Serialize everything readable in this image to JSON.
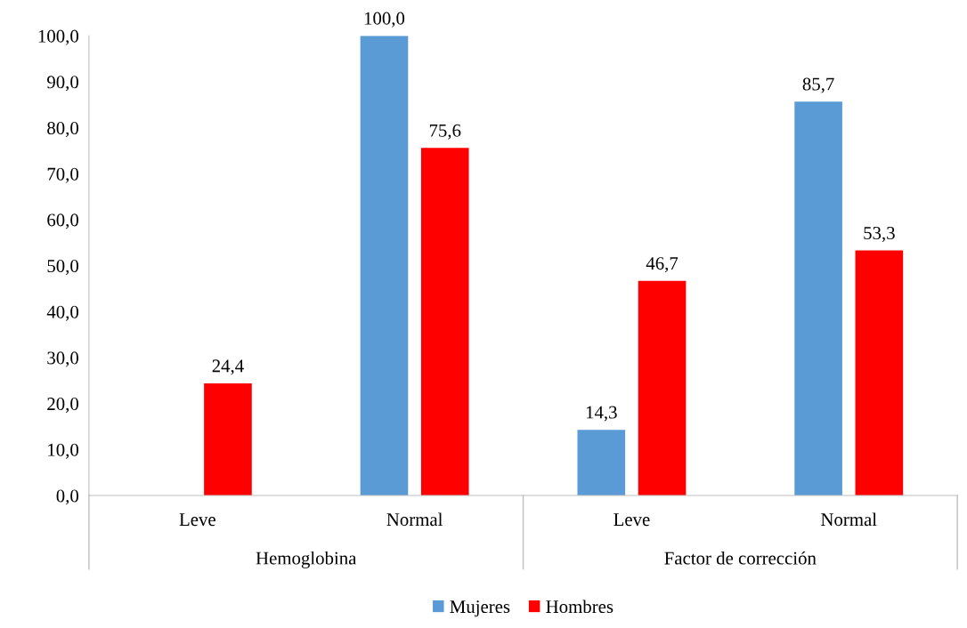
{
  "chart_data": {
    "type": "bar",
    "categories": [
      "Leve",
      "Normal",
      "Leve",
      "Normal"
    ],
    "series": [
      {
        "name": "Mujeres",
        "color": "#5b9bd5",
        "values": [
          null,
          100.0,
          14.3,
          85.7
        ],
        "value_labels": [
          null,
          "100,0",
          "14,3",
          "85,7"
        ]
      },
      {
        "name": "Hombres",
        "color": "#ff0000",
        "values": [
          24.4,
          75.6,
          46.7,
          53.3
        ],
        "value_labels": [
          "24,4",
          "75,6",
          "46,7",
          "53,3"
        ]
      }
    ],
    "ylim": [
      0,
      100
    ],
    "yticks": [
      {
        "value": 0,
        "label": "0,0"
      },
      {
        "value": 10,
        "label": "10,0"
      },
      {
        "value": 20,
        "label": "20,0"
      },
      {
        "value": 30,
        "label": "30,0"
      },
      {
        "value": 40,
        "label": "40,0"
      },
      {
        "value": 50,
        "label": "50,0"
      },
      {
        "value": 60,
        "label": "60,0"
      },
      {
        "value": 70,
        "label": "70,0"
      },
      {
        "value": 80,
        "label": "80,0"
      },
      {
        "value": 90,
        "label": "90,0"
      },
      {
        "value": 100,
        "label": "100,0"
      }
    ],
    "annotations": [
      "Hemoglobina",
      "Factor de corrección"
    ],
    "grid": false,
    "legend": "bottom"
  }
}
